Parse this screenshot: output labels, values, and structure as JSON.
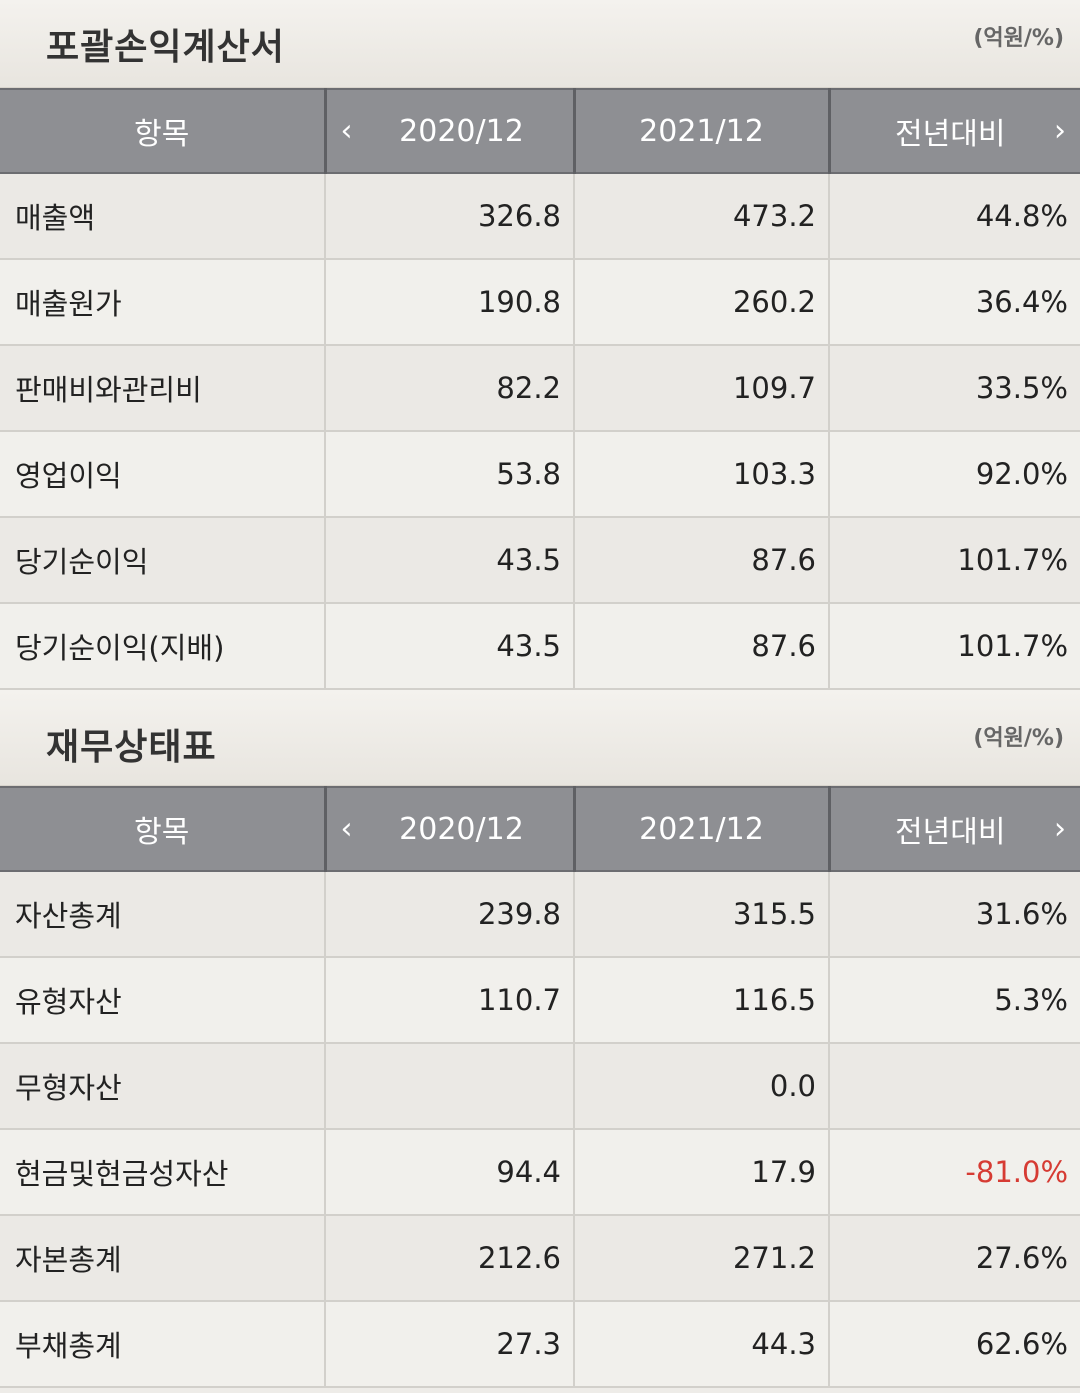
{
  "income": {
    "title": "포괄손익계산서",
    "unit": "(억원/%)",
    "headers": {
      "item": "항목",
      "col1": "2020/12",
      "col2": "2021/12",
      "col3": "전년대비"
    },
    "rows": [
      {
        "label": "매출액",
        "v1": "326.8",
        "v2": "473.2",
        "v3": "44.8%"
      },
      {
        "label": "매출원가",
        "v1": "190.8",
        "v2": "260.2",
        "v3": "36.4%"
      },
      {
        "label": "판매비와관리비",
        "v1": "82.2",
        "v2": "109.7",
        "v3": "33.5%"
      },
      {
        "label": "영업이익",
        "v1": "53.8",
        "v2": "103.3",
        "v3": "92.0%"
      },
      {
        "label": "당기순이익",
        "v1": "43.5",
        "v2": "87.6",
        "v3": "101.7%"
      },
      {
        "label": "당기순이익(지배)",
        "v1": "43.5",
        "v2": "87.6",
        "v3": "101.7%"
      }
    ]
  },
  "balance": {
    "title": "재무상태표",
    "unit": "(억원/%)",
    "headers": {
      "item": "항목",
      "col1": "2020/12",
      "col2": "2021/12",
      "col3": "전년대비"
    },
    "rows": [
      {
        "label": "자산총계",
        "v1": "239.8",
        "v2": "315.5",
        "v3": "31.6%"
      },
      {
        "label": "유형자산",
        "v1": "110.7",
        "v2": "116.5",
        "v3": "5.3%"
      },
      {
        "label": "무형자산",
        "v1": "",
        "v2": "0.0",
        "v3": ""
      },
      {
        "label": "현금및현금성자산",
        "v1": "94.4",
        "v2": "17.9",
        "v3": "-81.0%"
      },
      {
        "label": "자본총계",
        "v1": "212.6",
        "v2": "271.2",
        "v3": "27.6%"
      },
      {
        "label": "부채총계",
        "v1": "27.3",
        "v2": "44.3",
        "v3": "62.6%"
      }
    ]
  },
  "icons": {
    "prev": "chevron-left-icon",
    "next": "chevron-right-icon"
  },
  "colors": {
    "negative": "#d63b33",
    "header_bg": "#8e8f93"
  }
}
